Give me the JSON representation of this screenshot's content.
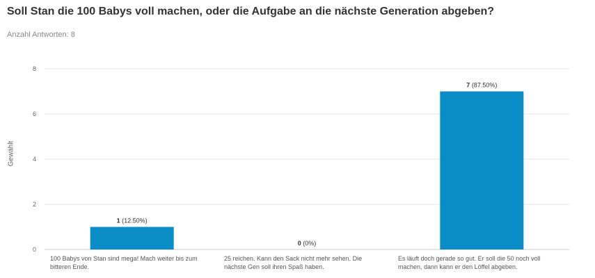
{
  "title": "Soll Stan die 100 Babys voll machen, oder die Aufgabe an die nächste Generation abgeben?",
  "subtitle": "Anzahl Antworten: 8",
  "chart_data": {
    "type": "bar",
    "title": "Soll Stan die 100 Babys voll machen, oder die Aufgabe an die nächste Generation abgeben?",
    "ylabel": "Gewählt",
    "xlabel": "",
    "categories": [
      "100 Babys von Stan sind mega! Mach weiter bis zum bitteren Ende.",
      "25 reichen. Kann den Sack nicht mehr sehen. Die nächste Gen soll ihren Spaß haben.",
      "Es läuft doch gerade so gut. Er soll die 50 noch voll machen, dann kann er den Löffel abgeben."
    ],
    "values": [
      1,
      0,
      7
    ],
    "value_labels": [
      {
        "count": "1",
        "percent": "(12.50%)"
      },
      {
        "count": "0",
        "percent": "(0%)"
      },
      {
        "count": "7",
        "percent": "(87.50%)"
      }
    ],
    "ylim": [
      0,
      8
    ],
    "yticks": [
      0,
      2,
      4,
      6,
      8
    ],
    "grid": true,
    "bar_color": "#0a8cc7"
  }
}
